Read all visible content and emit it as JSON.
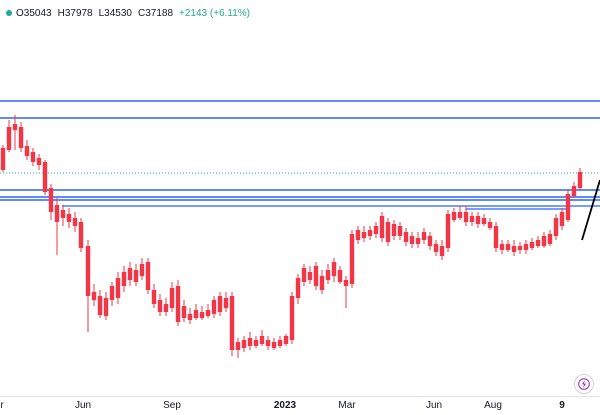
{
  "ohlc": {
    "open": "O35043",
    "high": "H37978",
    "low": "L34530",
    "close": "C37188",
    "change": "+2143 (+6.11%)"
  },
  "x_axis": {
    "ticks": [
      "r",
      "Jun",
      "Sep",
      "2023",
      "Mar",
      "Jun",
      "Aug",
      "9"
    ]
  },
  "colors": {
    "up": "#22ab94",
    "down": "#f23645",
    "level_line": "#2962ff",
    "trend_line": "#000000",
    "dotted_price_line": "#22ab94"
  },
  "icons": {
    "status_dot": "live-status-dot",
    "flash": "lightning-icon"
  }
}
